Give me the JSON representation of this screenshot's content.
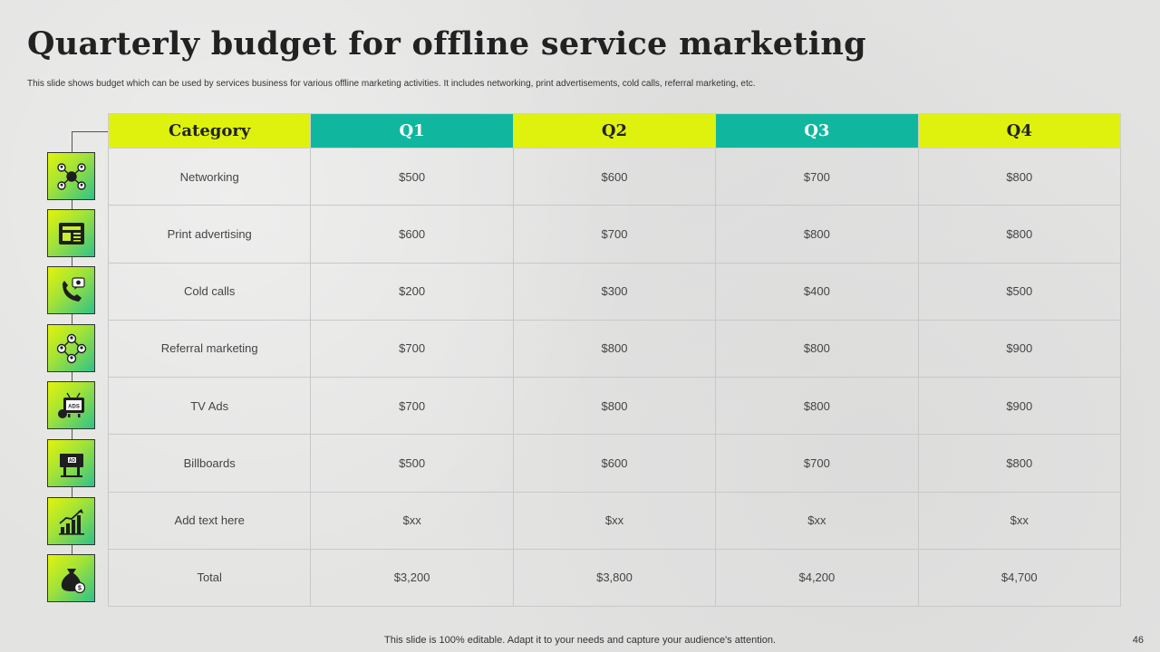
{
  "slide": {
    "title": "Quarterly budget for offline service marketing",
    "subtitle": "This slide shows budget which can be used by services business for various offline marketing  activities. It includes networking, print advertisements, cold calls, referral marketing, etc.",
    "footer": "This slide is 100% editable. Adapt it to your needs and capture your audience's attention.",
    "page_number": "46"
  },
  "colors": {
    "header_lime": "#dff20e",
    "header_teal": "#10b79e",
    "icon_gradient_start": "#e2f40a",
    "icon_gradient_end": "#2fc28a"
  },
  "table": {
    "headers": [
      "Category",
      "Q1",
      "Q2",
      "Q3",
      "Q4"
    ],
    "rows": [
      {
        "icon": "network-people-icon",
        "cells": [
          "Networking",
          "$500",
          "$600",
          "$700",
          "$800"
        ]
      },
      {
        "icon": "newspaper-icon",
        "cells": [
          "Print advertising",
          "$600",
          "$700",
          "$800",
          "$800"
        ]
      },
      {
        "icon": "phone-call-icon",
        "cells": [
          "Cold calls",
          "$200",
          "$300",
          "$400",
          "$500"
        ]
      },
      {
        "icon": "referral-network-icon",
        "cells": [
          "Referral marketing",
          "$700",
          "$800",
          "$800",
          "$900"
        ]
      },
      {
        "icon": "tv-ads-icon",
        "cells": [
          "TV Ads",
          "$700",
          "$800",
          "$800",
          "$900"
        ]
      },
      {
        "icon": "billboard-icon",
        "cells": [
          "Billboards",
          "$500",
          "$600",
          "$700",
          "$800"
        ]
      },
      {
        "icon": "growth-chart-icon",
        "cells": [
          "Add text here",
          "$xx",
          "$xx",
          "$xx",
          "$xx"
        ]
      },
      {
        "icon": "money-bag-icon",
        "cells": [
          "Total",
          "$3,200",
          "$3,800",
          "$4,200",
          "$4,700"
        ]
      }
    ]
  }
}
